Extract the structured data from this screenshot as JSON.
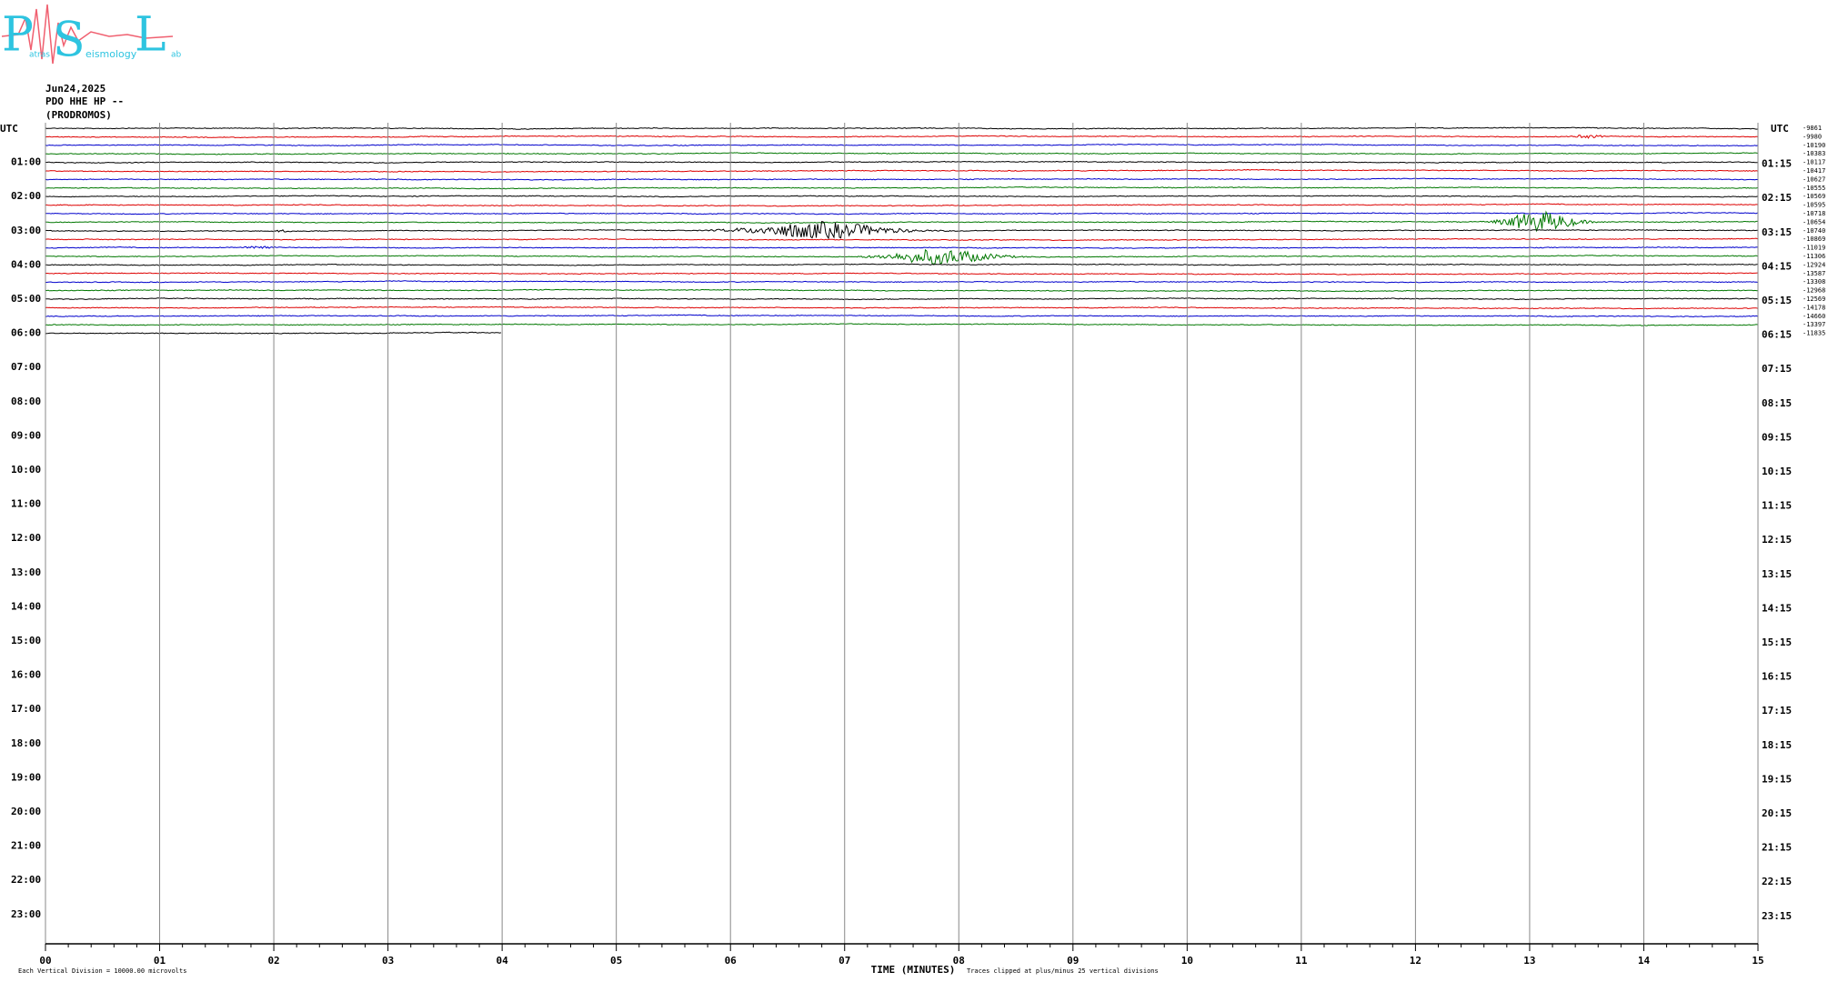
{
  "logo": {
    "letters": [
      "P",
      "S",
      "L"
    ],
    "words": [
      "atras",
      "eismology",
      "ab"
    ]
  },
  "header": {
    "date": "Jun24,2025",
    "station": "PDO HHE HP --",
    "site": "(PRODROMOS)"
  },
  "left_title": "UTC",
  "right_title": "UTC",
  "left_labels": [
    "01:00",
    "02:00",
    "03:00",
    "04:00",
    "05:00",
    "06:00",
    "07:00",
    "08:00",
    "09:00",
    "10:00",
    "11:00",
    "12:00",
    "13:00",
    "14:00",
    "15:00",
    "16:00",
    "17:00",
    "18:00",
    "19:00",
    "20:00",
    "21:00",
    "22:00",
    "23:00"
  ],
  "right_labels": [
    "01:15",
    "02:15",
    "03:15",
    "04:15",
    "05:15",
    "06:15",
    "07:15",
    "08:15",
    "09:15",
    "10:15",
    "11:15",
    "12:15",
    "13:15",
    "14:15",
    "15:15",
    "16:15",
    "17:15",
    "18:15",
    "19:15",
    "20:15",
    "21:15",
    "22:15",
    "23:15"
  ],
  "offsets": [
    -9861,
    -9980,
    -10190,
    -10383,
    -10117,
    -10417,
    -10627,
    -10555,
    -10569,
    -10595,
    -10718,
    -10654,
    -10740,
    -10869,
    -11019,
    -11306,
    -12924,
    -13587,
    -13308,
    -12968,
    -12569,
    -14178,
    -14660,
    -13397,
    -11835
  ],
  "time_axis": {
    "xlim": [
      0,
      15
    ],
    "xticks": [
      {
        "value": 0,
        "label": "00"
      },
      {
        "value": 1,
        "label": "01"
      },
      {
        "value": 2,
        "label": "02"
      },
      {
        "value": 3,
        "label": "03"
      },
      {
        "value": 4,
        "label": "04"
      },
      {
        "value": 5,
        "label": "05"
      },
      {
        "value": 6,
        "label": "06"
      },
      {
        "value": 7,
        "label": "07"
      },
      {
        "value": 8,
        "label": "08"
      },
      {
        "value": 9,
        "label": "09"
      },
      {
        "value": 10,
        "label": "10"
      },
      {
        "value": 11,
        "label": "11"
      },
      {
        "value": 12,
        "label": "12"
      },
      {
        "value": 13,
        "label": "13"
      },
      {
        "value": 14,
        "label": "14"
      },
      15
    ],
    "label": "TIME (MINUTES)"
  },
  "footer": {
    "scale_note": "Each Vertical Division = 10000.00 microvolts",
    "clip_note": "Traces clipped at plus/minus 25 vertical divisions"
  }
}
